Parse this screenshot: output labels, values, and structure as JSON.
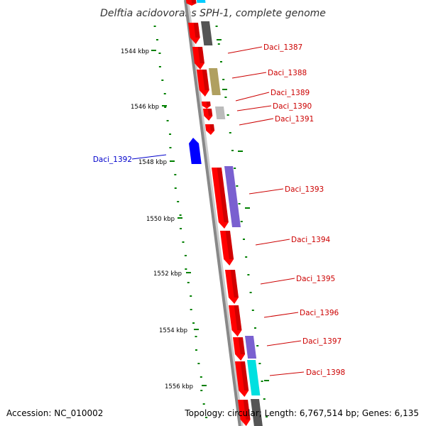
{
  "title": "Delftia acidovorans SPH-1, complete genome",
  "footer": {
    "accession": "Accession: NC_010002",
    "topology": "Topology: circular; Length: 6,767,514 bp; Genes: 6,135"
  },
  "colors": {
    "backbone": "#888888",
    "forward_gene": "#ff0000",
    "reverse_gene": "#0000ff",
    "tick": "#008000",
    "label_forward": "#cc0000",
    "label_reverse": "#0000cc"
  },
  "scale_labels": [
    "1544 kbp",
    "1546 kbp",
    "1548 kbp",
    "1550 kbp",
    "1552 kbp",
    "1554 kbp",
    "1556 kbp"
  ],
  "genes": [
    {
      "label": "Daci_1387",
      "strand": "forward"
    },
    {
      "label": "Daci_1388",
      "strand": "forward"
    },
    {
      "label": "Daci_1389",
      "strand": "forward"
    },
    {
      "label": "Daci_1390",
      "strand": "forward"
    },
    {
      "label": "Daci_1391",
      "strand": "forward"
    },
    {
      "label": "Daci_1392",
      "strand": "reverse"
    },
    {
      "label": "Daci_1393",
      "strand": "forward"
    },
    {
      "label": "Daci_1394",
      "strand": "forward"
    },
    {
      "label": "Daci_1395",
      "strand": "forward"
    },
    {
      "label": "Daci_1396",
      "strand": "forward"
    },
    {
      "label": "Daci_1397",
      "strand": "forward"
    },
    {
      "label": "Daci_1398",
      "strand": "forward"
    }
  ]
}
